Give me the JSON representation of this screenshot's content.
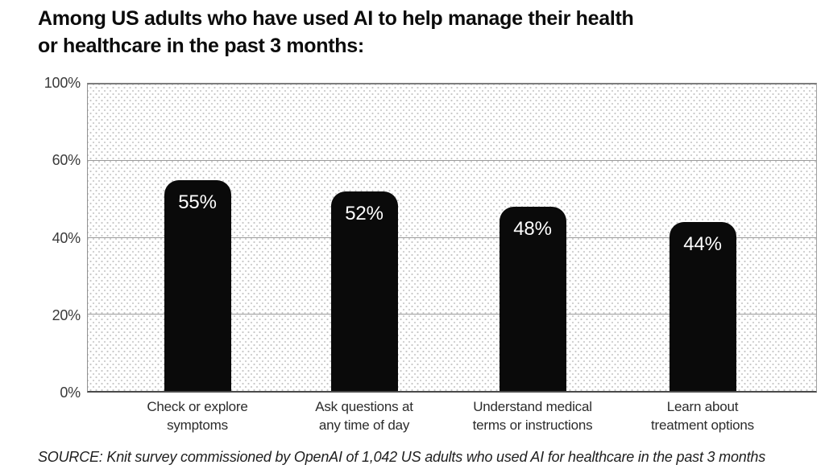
{
  "title": {
    "lines": [
      "Among US adults who have used AI to help manage their health",
      "or healthcare in the past 3 months:"
    ]
  },
  "source_note": "SOURCE: Knit survey commissioned by OpenAI of 1,042 US adults who used AI for healthcare in the past 3 months",
  "chart_data": {
    "type": "bar",
    "categories": [
      {
        "line1": "Check or explore",
        "line2": "symptoms"
      },
      {
        "line1": "Ask questions at",
        "line2": "any time of day"
      },
      {
        "line1": "Understand medical",
        "line2": "terms or instructions"
      },
      {
        "line1": "Learn about",
        "line2": "treatment options"
      }
    ],
    "values": [
      55,
      52,
      48,
      44
    ],
    "value_labels": [
      "55%",
      "52%",
      "48%",
      "44%"
    ],
    "y_ticks": [
      {
        "value": 0,
        "label": "0%"
      },
      {
        "value": 20,
        "label": "20%"
      },
      {
        "value": 40,
        "label": "40%"
      },
      {
        "value": 60,
        "label": "60%"
      },
      {
        "value": 100,
        "label": "100%"
      }
    ],
    "ylim": [
      0,
      100
    ],
    "axis_style": "ticks equally spaced (60%-100% compressed into one step)",
    "grid": true,
    "grid_background": "light-gray dot stipple",
    "legend": "none",
    "bar_color": "#0a0a0a",
    "value_label_color": "#ffffff",
    "title": "Among US adults who have used AI to help manage their health or healthcare in the past 3 months:",
    "xlabel": "",
    "ylabel": ""
  }
}
